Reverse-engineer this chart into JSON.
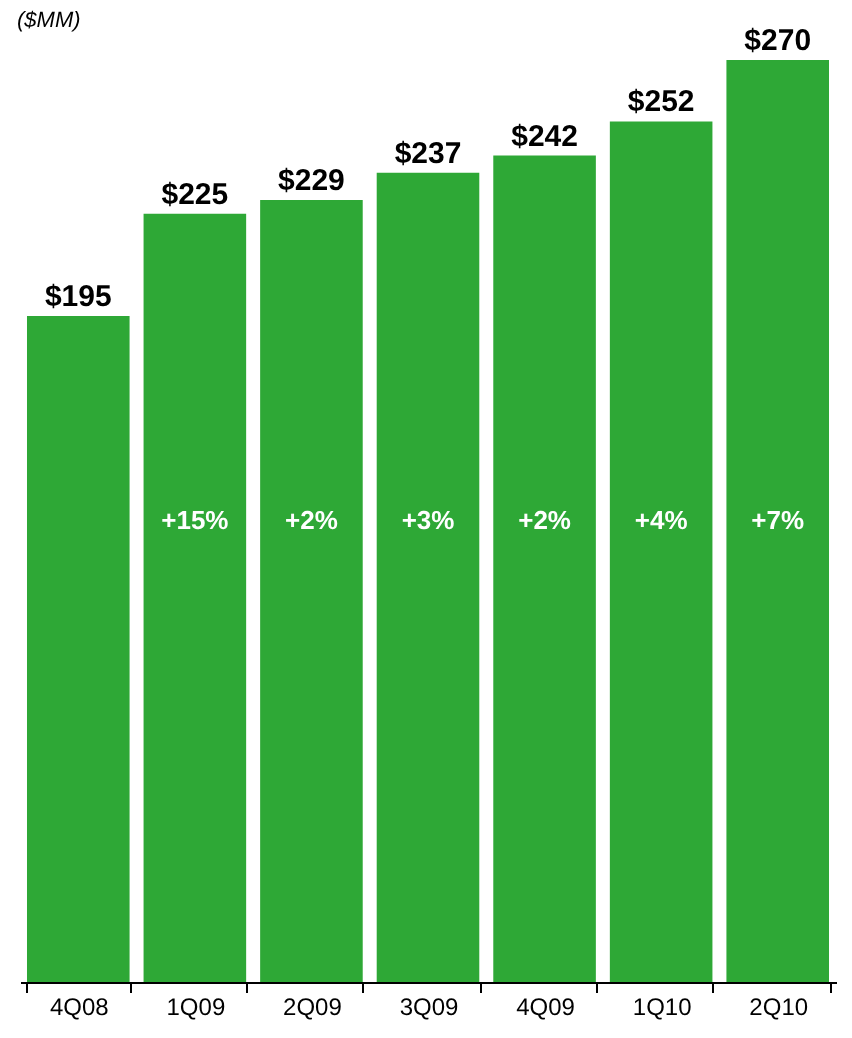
{
  "chart_data": {
    "type": "bar",
    "ylabel": "($MM)",
    "categories": [
      "4Q08",
      "1Q09",
      "2Q09",
      "3Q09",
      "4Q09",
      "1Q10",
      "2Q10"
    ],
    "values": [
      195,
      225,
      229,
      237,
      242,
      252,
      270
    ],
    "value_labels": [
      "$195",
      "$225",
      "$229",
      "$237",
      "$242",
      "$252",
      "$270"
    ],
    "color": "#2ea836",
    "annotations": [
      "+15%",
      "+2%",
      "+3%",
      "+2%",
      "+4%",
      "+7%"
    ]
  }
}
